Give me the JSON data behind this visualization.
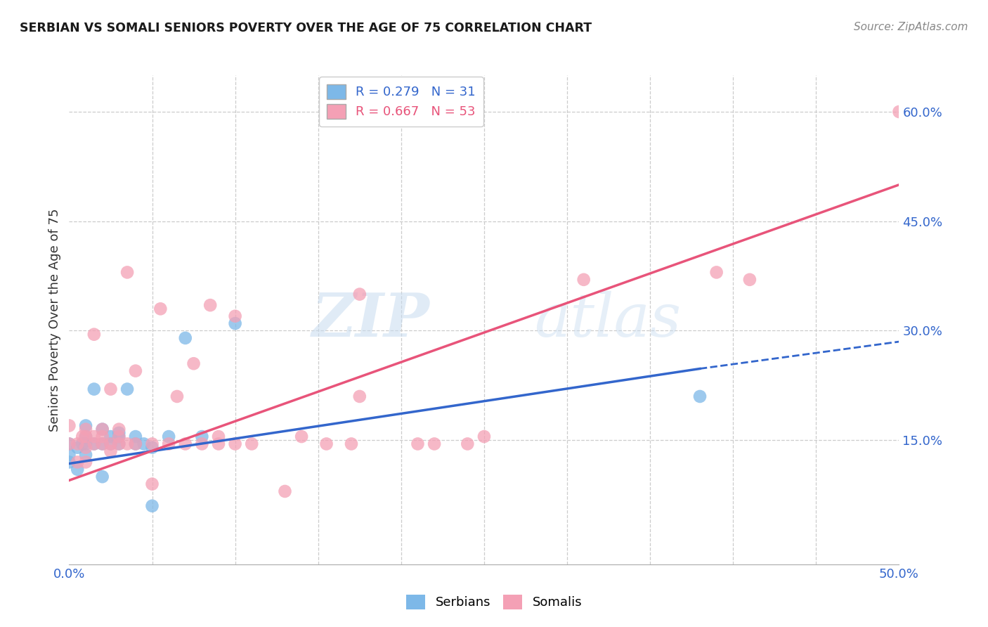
{
  "title": "SERBIAN VS SOMALI SENIORS POVERTY OVER THE AGE OF 75 CORRELATION CHART",
  "source": "Source: ZipAtlas.com",
  "ylabel": "Seniors Poverty Over the Age of 75",
  "xlim": [
    0.0,
    0.5
  ],
  "ylim": [
    -0.02,
    0.65
  ],
  "ytick_positions": [
    0.15,
    0.3,
    0.45,
    0.6
  ],
  "ytick_labels": [
    "15.0%",
    "30.0%",
    "45.0%",
    "60.0%"
  ],
  "xtick_labels_left": "0.0%",
  "xtick_labels_right": "50.0%",
  "serbian_R": 0.279,
  "serbian_N": 31,
  "somali_R": 0.667,
  "somali_N": 53,
  "serbian_color": "#7db8e8",
  "somali_color": "#f4a0b5",
  "serbian_line_color": "#3366cc",
  "somali_line_color": "#e8547a",
  "watermark_zip": "ZIP",
  "watermark_atlas": "atlas",
  "serbian_line": {
    "x0": 0.0,
    "y0": 0.118,
    "x1": 0.38,
    "y1": 0.248,
    "x_dash": 0.5,
    "y_dash": 0.285
  },
  "somali_line": {
    "x0": 0.0,
    "y0": 0.095,
    "x1": 0.5,
    "y1": 0.5
  },
  "serbian_points_x": [
    0.0,
    0.0,
    0.0,
    0.005,
    0.005,
    0.008,
    0.01,
    0.01,
    0.01,
    0.01,
    0.015,
    0.015,
    0.02,
    0.02,
    0.02,
    0.025,
    0.025,
    0.03,
    0.03,
    0.03,
    0.035,
    0.04,
    0.04,
    0.045,
    0.05,
    0.05,
    0.06,
    0.07,
    0.08,
    0.38,
    0.1
  ],
  "serbian_points_y": [
    0.12,
    0.13,
    0.145,
    0.11,
    0.14,
    0.145,
    0.13,
    0.145,
    0.155,
    0.17,
    0.22,
    0.145,
    0.1,
    0.145,
    0.165,
    0.145,
    0.155,
    0.145,
    0.155,
    0.16,
    0.22,
    0.145,
    0.155,
    0.145,
    0.06,
    0.14,
    0.155,
    0.29,
    0.155,
    0.21,
    0.31
  ],
  "somali_points_x": [
    0.0,
    0.0,
    0.005,
    0.005,
    0.008,
    0.01,
    0.01,
    0.01,
    0.01,
    0.015,
    0.015,
    0.015,
    0.02,
    0.02,
    0.02,
    0.025,
    0.025,
    0.025,
    0.03,
    0.03,
    0.03,
    0.035,
    0.035,
    0.04,
    0.04,
    0.05,
    0.05,
    0.055,
    0.06,
    0.065,
    0.07,
    0.075,
    0.08,
    0.085,
    0.09,
    0.1,
    0.1,
    0.11,
    0.13,
    0.155,
    0.17,
    0.175,
    0.21,
    0.22,
    0.24,
    0.25,
    0.31,
    0.39,
    0.41,
    0.5,
    0.175,
    0.09,
    0.14
  ],
  "somali_points_y": [
    0.145,
    0.17,
    0.12,
    0.145,
    0.155,
    0.12,
    0.14,
    0.155,
    0.165,
    0.145,
    0.155,
    0.295,
    0.145,
    0.155,
    0.165,
    0.135,
    0.145,
    0.22,
    0.145,
    0.155,
    0.165,
    0.38,
    0.145,
    0.145,
    0.245,
    0.09,
    0.145,
    0.33,
    0.145,
    0.21,
    0.145,
    0.255,
    0.145,
    0.335,
    0.145,
    0.145,
    0.32,
    0.145,
    0.08,
    0.145,
    0.145,
    0.35,
    0.145,
    0.145,
    0.145,
    0.155,
    0.37,
    0.38,
    0.37,
    0.6,
    0.21,
    0.155,
    0.155
  ]
}
